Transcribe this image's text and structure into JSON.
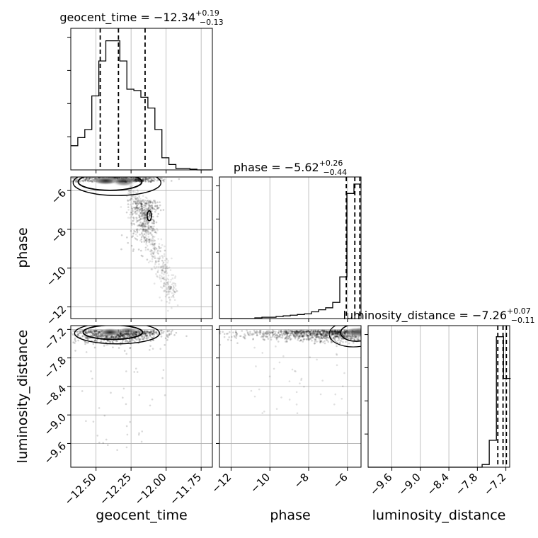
{
  "chart_data": {
    "type": "corner",
    "parameters": [
      "geocent_time",
      "phase",
      "luminosity_distance"
    ],
    "titles": [
      {
        "param": "geocent_time",
        "prefix": "geocent_time = ",
        "median": "−12.34",
        "plus": "+0.19",
        "minus": "−0.13"
      },
      {
        "param": "phase",
        "prefix": "phase = ",
        "median": "−5.62",
        "plus": "+0.26",
        "minus": "−0.44"
      },
      {
        "param": "luminosity_distance",
        "prefix": "luminosity_distance = ",
        "median": "−7.26",
        "plus": "+0.07",
        "minus": "−0.11"
      }
    ],
    "axis_labels": {
      "x": [
        "geocent_time",
        "phase",
        "luminosity_distance"
      ],
      "y": [
        "phase",
        "luminosity_distance"
      ]
    },
    "ranges": {
      "geocent_time": [
        -12.68,
        -11.67
      ],
      "phase": [
        -12.6,
        -5.3
      ],
      "luminosity_distance": [
        -10.1,
        -7.12
      ]
    },
    "ticks": {
      "geocent_time": {
        "values": [
          -12.5,
          -12.25,
          -12.0,
          -11.75
        ],
        "labels": [
          "−12.50",
          "−12.25",
          "−12.00",
          "−11.75"
        ]
      },
      "phase": {
        "values": [
          -12,
          -10,
          -8,
          -6
        ],
        "labels": [
          "−12",
          "−10",
          "−8",
          "−6"
        ]
      },
      "luminosity_distance": {
        "values": [
          -9.6,
          -9.0,
          -8.4,
          -7.8,
          -7.2
        ],
        "labels": [
          "−9.6",
          "−9.0",
          "−8.4",
          "−7.8",
          "−7.2"
        ]
      }
    },
    "quantiles": {
      "geocent_time": [
        -12.47,
        -12.34,
        -12.15
      ],
      "phase": [
        -6.06,
        -5.62,
        -5.36
      ],
      "luminosity_distance": [
        -7.37,
        -7.26,
        -7.19
      ]
    },
    "histograms": {
      "geocent_time": {
        "x0": -12.68,
        "bin_width": 0.05,
        "counts": [
          0.18,
          0.24,
          0.3,
          0.55,
          0.81,
          0.96,
          0.96,
          0.81,
          0.6,
          0.59,
          0.54,
          0.46,
          0.3,
          0.09,
          0.04,
          0.01,
          0.01,
          0.005,
          0.0,
          0.0
        ]
      },
      "phase": {
        "x0": -12.6,
        "bin_width": 0.365,
        "counts": [
          0.0,
          0.0,
          0.0,
          0.0,
          0.0,
          0.005,
          0.01,
          0.01,
          0.015,
          0.02,
          0.025,
          0.03,
          0.035,
          0.05,
          0.065,
          0.08,
          0.12,
          0.31,
          0.93,
          1.0
        ]
      },
      "luminosity_distance": {
        "x0": -10.1,
        "bin_width": 0.15,
        "counts": [
          0.0,
          0.0,
          0.0,
          0.0,
          0.0,
          0.0,
          0.0,
          0.0,
          0.0,
          0.0,
          0.0,
          0.0,
          0.0,
          0.0,
          0.0,
          0.0,
          0.02,
          0.2,
          0.97,
          0.66
        ]
      }
    },
    "grid": true
  }
}
